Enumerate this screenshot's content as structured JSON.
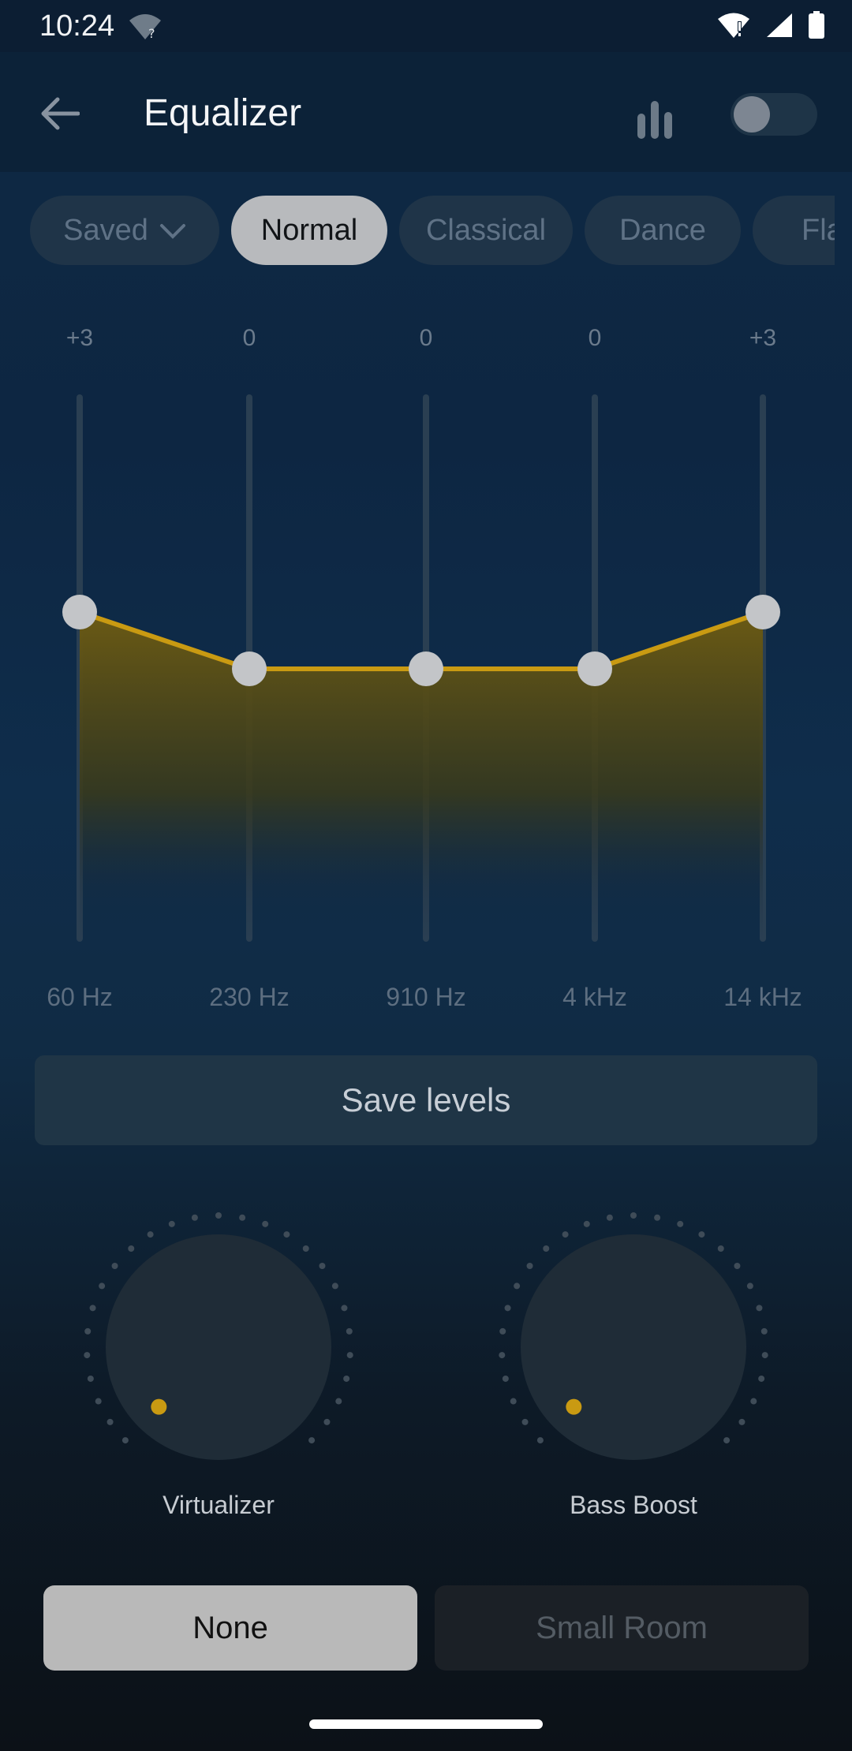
{
  "status_bar": {
    "time": "10:24",
    "icons": [
      "wifi-unknown-icon",
      "wifi-alert-icon",
      "cell-signal-icon",
      "battery-icon"
    ]
  },
  "app_bar": {
    "title": "Equalizer",
    "back_icon": "arrow-left-icon",
    "visualizer_icon": "bar-chart-icon",
    "toggle_on": false
  },
  "presets": {
    "items": [
      {
        "label": "Saved",
        "active": false,
        "has_dropdown": true
      },
      {
        "label": "Normal",
        "active": true
      },
      {
        "label": "Classical",
        "active": false
      },
      {
        "label": "Dance",
        "active": false
      },
      {
        "label": "Flat",
        "active": false
      }
    ]
  },
  "equalizer": {
    "bands": [
      {
        "freq": "60 Hz",
        "gain_label": "+3",
        "gain": 3
      },
      {
        "freq": "230 Hz",
        "gain_label": "0",
        "gain": 0
      },
      {
        "freq": "910 Hz",
        "gain_label": "0",
        "gain": 0
      },
      {
        "freq": "4 kHz",
        "gain_label": "0",
        "gain": 0
      },
      {
        "freq": "14 kHz",
        "gain_label": "+3",
        "gain": 3
      }
    ],
    "accent_color": "#c99a12"
  },
  "save_button": {
    "label": "Save levels"
  },
  "knobs": [
    {
      "label": "Virtualizer",
      "level": 0
    },
    {
      "label": "Bass Boost",
      "level": 0
    }
  ],
  "reverb": {
    "options": [
      {
        "label": "None",
        "active": true
      },
      {
        "label": "Small Room",
        "active": false
      }
    ]
  }
}
